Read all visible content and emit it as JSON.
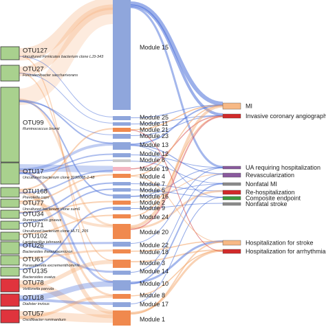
{
  "colors": {
    "green": "#a9d18e",
    "red": "#e0343d",
    "blue_module": "#8fa6dc",
    "orange_module": "#f0894e",
    "pink_module": "#f4b6c2",
    "gray_module": "#c9c9c9",
    "flow_blue": "#4a6fd9",
    "flow_orange": "#f4a66a",
    "flow_red": "#d23b3b",
    "outcome_orange": "#f7b985",
    "outcome_red": "#d22a2a",
    "outcome_purple": "#8a5a9e",
    "outcome_green": "#3f9a3f",
    "outcome_gray": "#8d8d8d"
  },
  "otus": [
    {
      "name": "OTU127",
      "desc": "Uncultured Firmicutes bacterium clone LJ3-343",
      "color": "green"
    },
    {
      "name": "OTU27",
      "desc": "Fusicatenibacter saccharivorans",
      "color": "green"
    },
    {
      "name": "OTU99",
      "desc": "Ruminococcus bromii",
      "color": "green"
    },
    {
      "name": "OTU17",
      "desc": "Uncultured bacterium clone 3190005-1-48",
      "color": "green"
    },
    {
      "name": "OTU168",
      "desc": "Prevotella copri",
      "color": "green"
    },
    {
      "name": "OTU77",
      "desc": "Uncultured bacterium clone sum6",
      "color": "green"
    },
    {
      "name": "OTU34",
      "desc": "Ruminococcus gnavus",
      "color": "green"
    },
    {
      "name": "OTU71",
      "desc": "Uncultured bacterium clone HLT1_205",
      "color": "green"
    },
    {
      "name": "OTU102",
      "desc": "Lactobacillus johnsonii",
      "color": "green"
    },
    {
      "name": "OTU26",
      "desc": "Bacteroides thetaiotaomicron",
      "color": "green"
    },
    {
      "name": "OTU61",
      "desc": "Parasutterella excrementihominis",
      "color": "green"
    },
    {
      "name": "OTU135",
      "desc": "Bacteroides ovatus",
      "color": "green"
    },
    {
      "name": "OTU78",
      "desc": "Veillonella parvula",
      "color": "red"
    },
    {
      "name": "OTU18",
      "desc": "Dialister invisus",
      "color": "red"
    },
    {
      "name": "OTU57",
      "desc": "Oscillibacter ruminantium",
      "color": "red"
    }
  ],
  "modules": [
    {
      "name": "Module 15",
      "color": "blue_module"
    },
    {
      "name": "Module 25",
      "color": "blue_module"
    },
    {
      "name": "Module 11",
      "color": "blue_module"
    },
    {
      "name": "Module 21",
      "color": "orange_module"
    },
    {
      "name": "Module 23",
      "color": "blue_module"
    },
    {
      "name": "Module 13",
      "color": "blue_module"
    },
    {
      "name": "Module 12",
      "color": "blue_module"
    },
    {
      "name": "Module 6",
      "color": "gray_module"
    },
    {
      "name": "Module 19",
      "color": "pink_module"
    },
    {
      "name": "Module 4",
      "color": "orange_module"
    },
    {
      "name": "Module 7",
      "color": "blue_module"
    },
    {
      "name": "Module 5",
      "color": "blue_module"
    },
    {
      "name": "Module 16",
      "color": "blue_module"
    },
    {
      "name": "Module 2",
      "color": "orange_module"
    },
    {
      "name": "Module 9",
      "color": "blue_module"
    },
    {
      "name": "Module 24",
      "color": "orange_module"
    },
    {
      "name": "Module 20",
      "color": "orange_module"
    },
    {
      "name": "Module 22",
      "color": "blue_module"
    },
    {
      "name": "Module 18",
      "color": "orange_module"
    },
    {
      "name": "Module 3",
      "color": "orange_module"
    },
    {
      "name": "Module 14",
      "color": "blue_module"
    },
    {
      "name": "Module 10",
      "color": "blue_module"
    },
    {
      "name": "Module 8",
      "color": "orange_module"
    },
    {
      "name": "Module 17",
      "color": "blue_module"
    },
    {
      "name": "Module 1",
      "color": "orange_module"
    }
  ],
  "outcomes": [
    {
      "name": "MI",
      "color": "outcome_orange"
    },
    {
      "name": "Invasive coronary angiography",
      "color": "outcome_red"
    },
    {
      "name": "UA requiring hospitalization",
      "color": "outcome_purple"
    },
    {
      "name": "Revascularization",
      "color": "outcome_purple"
    },
    {
      "name": "Nonfatal MI",
      "color": "outcome_gray"
    },
    {
      "name": "Re-hospitalization",
      "color": "outcome_red"
    },
    {
      "name": "Composite endpoint",
      "color": "outcome_green"
    },
    {
      "name": "Nonfatal stroke",
      "color": "outcome_gray"
    },
    {
      "name": "Hospitalization for stroke",
      "color": "outcome_orange"
    },
    {
      "name": "Hospitalization for arrhythmia",
      "color": "outcome_red"
    }
  ]
}
